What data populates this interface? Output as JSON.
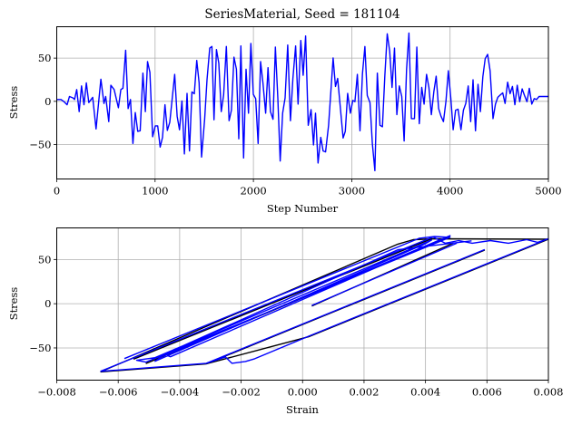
{
  "colors": {
    "primary": "#0000ff",
    "reference": "#000000",
    "grid": "#b0b0b0"
  },
  "chart_data": [
    {
      "type": "line",
      "title": "SeriesMaterial, Seed = 181104",
      "xlabel": "Step Number",
      "ylabel": "Stress",
      "xlim": [
        0,
        5000
      ],
      "ylim": [
        -89.8,
        86.3
      ],
      "xticks": [
        0,
        1000,
        2000,
        3000,
        4000,
        5000
      ],
      "xtick_labels": [
        "0",
        "1000",
        "2000",
        "3000",
        "4000",
        "5000"
      ],
      "yticks": [
        -50,
        0,
        50
      ],
      "ytick_labels": [
        "−50",
        "0",
        "50"
      ],
      "grid": true,
      "series": [
        {
          "name": "reference",
          "color": "#000000",
          "points": []
        },
        {
          "name": "stress",
          "color": "#0000ff",
          "points": [
            [
              0,
              2
            ],
            [
              12,
              2.1
            ],
            [
              43,
              2.1
            ],
            [
              74,
              -0.4
            ],
            [
              105,
              -3.9
            ],
            [
              129,
              5.6
            ],
            [
              166,
              3.9
            ],
            [
              181,
              2.1
            ],
            [
              203,
              13.7
            ],
            [
              228,
              -11.9
            ],
            [
              252,
              17.9
            ],
            [
              277,
              -3.9
            ],
            [
              301,
              21.4
            ],
            [
              326,
              -1.4
            ],
            [
              366,
              4.6
            ],
            [
              400,
              -31.9
            ],
            [
              449,
              25.6
            ],
            [
              480,
              -2.5
            ],
            [
              498,
              5.6
            ],
            [
              529,
              -23.5
            ],
            [
              550,
              18.6
            ],
            [
              584,
              13.7
            ],
            [
              627,
              -7.4
            ],
            [
              652,
              13.7
            ],
            [
              673,
              15.1
            ],
            [
              701,
              59.2
            ],
            [
              726,
              -8.4
            ],
            [
              750,
              2.1
            ],
            [
              775,
              -48.7
            ],
            [
              799,
              -13.0
            ],
            [
              824,
              -34.7
            ],
            [
              849,
              -34.0
            ],
            [
              876,
              32.6
            ],
            [
              901,
              -11.9
            ],
            [
              923,
              45.9
            ],
            [
              947,
              33.6
            ],
            [
              975,
              -41.0
            ],
            [
              1002,
              -28.4
            ],
            [
              1027,
              -28.4
            ],
            [
              1052,
              -52.9
            ],
            [
              1076,
              -41.7
            ],
            [
              1101,
              -3.9
            ],
            [
              1125,
              -33.6
            ],
            [
              1150,
              -24.2
            ],
            [
              1199,
              31.2
            ],
            [
              1224,
              -17.2
            ],
            [
              1248,
              -32.9
            ],
            [
              1273,
              0.4
            ],
            [
              1298,
              -60.9
            ],
            [
              1325,
              9.1
            ],
            [
              1350,
              -57.4
            ],
            [
              1375,
              10.9
            ],
            [
              1399,
              8.8
            ],
            [
              1424,
              47.3
            ],
            [
              1448,
              21.4
            ],
            [
              1473,
              -64.4
            ],
            [
              1504,
              -20.7
            ],
            [
              1528,
              24.9
            ],
            [
              1556,
              61.6
            ],
            [
              1578,
              63.4
            ],
            [
              1599,
              -21.4
            ],
            [
              1624,
              59.9
            ],
            [
              1648,
              44.1
            ],
            [
              1673,
              -11.9
            ],
            [
              1697,
              7.4
            ],
            [
              1725,
              63.4
            ],
            [
              1753,
              -22.4
            ],
            [
              1777,
              -10.2
            ],
            [
              1802,
              51.1
            ],
            [
              1827,
              37.1
            ],
            [
              1851,
              -43.4
            ],
            [
              1873,
              64.1
            ],
            [
              1900,
              -65.5
            ],
            [
              1925,
              37.1
            ],
            [
              1950,
              -13.7
            ],
            [
              1974,
              66.9
            ],
            [
              1999,
              8.1
            ],
            [
              2023,
              3.2
            ],
            [
              2048,
              -48.7
            ],
            [
              2073,
              45.9
            ],
            [
              2097,
              21.4
            ],
            [
              2125,
              -13.7
            ],
            [
              2149,
              38.9
            ],
            [
              2174,
              -11.9
            ],
            [
              2199,
              -20.7
            ],
            [
              2223,
              62.7
            ],
            [
              2248,
              3.9
            ],
            [
              2272,
              -69.0
            ],
            [
              2297,
              -13.7
            ],
            [
              2322,
              3.9
            ],
            [
              2349,
              65.1
            ],
            [
              2377,
              -22.4
            ],
            [
              2402,
              26.6
            ],
            [
              2429,
              64.1
            ],
            [
              2454,
              -3.2
            ],
            [
              2482,
              70.4
            ],
            [
              2506,
              30.1
            ],
            [
              2531,
              75.6
            ],
            [
              2558,
              -27.7
            ],
            [
              2586,
              -9.5
            ],
            [
              2611,
              -50.4
            ],
            [
              2632,
              -13.7
            ],
            [
              2657,
              -71.4
            ],
            [
              2685,
              -41.7
            ],
            [
              2709,
              -57.4
            ],
            [
              2734,
              -58.5
            ],
            [
              2765,
              -27.7
            ],
            [
              2811,
              50.1
            ],
            [
              2835,
              17.2
            ],
            [
              2857,
              26.6
            ],
            [
              2881,
              -3.2
            ],
            [
              2912,
              -42.4
            ],
            [
              2934,
              -34.7
            ],
            [
              2958,
              9.1
            ],
            [
              2986,
              -13.7
            ],
            [
              3011,
              1.1
            ],
            [
              3032,
              -0.4
            ],
            [
              3057,
              31.2
            ],
            [
              3084,
              -34.0
            ],
            [
              3109,
              31.9
            ],
            [
              3134,
              63.4
            ],
            [
              3158,
              6.7
            ],
            [
              3186,
              -1.4
            ],
            [
              3210,
              -48.7
            ],
            [
              3235,
              -80.2
            ],
            [
              3260,
              32.6
            ],
            [
              3287,
              -27.7
            ],
            [
              3312,
              -29.4
            ],
            [
              3336,
              28.4
            ],
            [
              3361,
              78.1
            ],
            [
              3386,
              58.1
            ],
            [
              3410,
              16.1
            ],
            [
              3435,
              61.6
            ],
            [
              3459,
              -15.4
            ],
            [
              3484,
              17.9
            ],
            [
              3509,
              5.6
            ],
            [
              3533,
              -45.9
            ],
            [
              3558,
              37.1
            ],
            [
              3582,
              79.1
            ],
            [
              3607,
              -20.0
            ],
            [
              3638,
              -20.0
            ],
            [
              3662,
              62.7
            ],
            [
              3687,
              -25.9
            ],
            [
              3712,
              16.1
            ],
            [
              3736,
              -3.2
            ],
            [
              3761,
              31.2
            ],
            [
              3785,
              16.1
            ],
            [
              3810,
              -15.4
            ],
            [
              3835,
              10.9
            ],
            [
              3859,
              29.1
            ],
            [
              3884,
              -8.4
            ],
            [
              3908,
              -17.2
            ],
            [
              3933,
              -23.5
            ],
            [
              3958,
              0.4
            ],
            [
              3982,
              35.4
            ],
            [
              4007,
              3.9
            ],
            [
              4031,
              -32.9
            ],
            [
              4056,
              -10.2
            ],
            [
              4081,
              -9.1
            ],
            [
              4111,
              -32.9
            ],
            [
              4136,
              -10.2
            ],
            [
              4160,
              -2.5
            ],
            [
              4185,
              17.9
            ],
            [
              4210,
              -23.5
            ],
            [
              4234,
              24.9
            ],
            [
              4259,
              -34.0
            ],
            [
              4284,
              19.6
            ],
            [
              4308,
              -11.9
            ],
            [
              4333,
              28.4
            ],
            [
              4357,
              49.4
            ],
            [
              4382,
              54.3
            ],
            [
              4407,
              35.4
            ],
            [
              4437,
              -20.0
            ],
            [
              4462,
              -3.2
            ],
            [
              4486,
              4.6
            ],
            [
              4511,
              7.4
            ],
            [
              4536,
              9.8
            ],
            [
              4560,
              -2.5
            ],
            [
              4585,
              22.1
            ],
            [
              4610,
              8.8
            ],
            [
              4634,
              17.2
            ],
            [
              4659,
              -3.9
            ],
            [
              4683,
              18.6
            ],
            [
              4708,
              -0.4
            ],
            [
              4733,
              14.4
            ],
            [
              4757,
              6.7
            ],
            [
              4782,
              -0.4
            ],
            [
              4806,
              15.1
            ],
            [
              4831,
              -3.2
            ],
            [
              4856,
              3.2
            ],
            [
              4880,
              2.1
            ],
            [
              4905,
              5.6
            ],
            [
              4948,
              5.6
            ],
            [
              5000,
              5.6
            ]
          ]
        }
      ]
    },
    {
      "type": "line",
      "title": "",
      "xlabel": "Strain",
      "ylabel": "Stress",
      "xlim": [
        -0.008,
        0.008
      ],
      "ylim": [
        -86.4,
        85.7
      ],
      "xticks": [
        -0.008,
        -0.006,
        -0.004,
        -0.002,
        0,
        0.002,
        0.004,
        0.006,
        0.008
      ],
      "xtick_labels": [
        "−0.008",
        "−0.006",
        "−0.004",
        "−0.002",
        "0.000",
        "0.002",
        "0.004",
        "0.006",
        "0.008"
      ],
      "yticks": [
        -50,
        0,
        50
      ],
      "ytick_labels": [
        "−50",
        "0",
        "50"
      ],
      "grid": true,
      "series": [
        {
          "name": "reference",
          "color": "#000000",
          "polylines": [
            [
              [
                -0.00658,
                -76.5
              ],
              [
                0.0031,
                68
              ],
              [
                0.0036,
                73
              ],
              [
                0.0043,
                74
              ],
              [
                0.008,
                73.5
              ],
              [
                0.0002,
                -36.7
              ],
              [
                -0.00313,
                -67.3
              ],
              [
                -0.00658,
                -76.5
              ]
            ],
            [
              [
                -0.00313,
                -67.3
              ],
              [
                0.00593,
                61.2
              ]
            ],
            [
              [
                0.0003,
                -2
              ],
              [
                0.0049,
                69
              ]
            ],
            [
              [
                -0.0051,
                -67
              ],
              [
                0.0048,
                77
              ]
            ],
            [
              [
                -0.0055,
                -62
              ],
              [
                0.0042,
                74
              ]
            ]
          ]
        },
        {
          "name": "hysteresis",
          "color": "#0000ff",
          "polylines": [
            [
              [
                -0.00658,
                -76.5
              ],
              [
                0.00425,
                75.5
              ],
              [
                0.00464,
                68.4
              ],
              [
                0.00508,
                71.4
              ],
              [
                0.00552,
                68.4
              ],
              [
                0.00611,
                71.4
              ],
              [
                0.0067,
                68.4
              ],
              [
                0.00729,
                72.4
              ],
              [
                0.00765,
                69.4
              ],
              [
                0.008,
                73.5
              ],
              [
                0.0002,
                -36.7
              ],
              [
                -0.00156,
                -62.2
              ],
              [
                -0.00186,
                -65.3
              ],
              [
                -0.0023,
                -67.3
              ],
              [
                -0.00251,
                -60.2
              ],
              [
                -0.00313,
                -67.3
              ],
              [
                -0.00658,
                -76.5
              ]
            ],
            [
              [
                -0.00313,
                -67.3
              ],
              [
                0.00593,
                61.2
              ]
            ],
            [
              [
                0.0003,
                -2
              ],
              [
                0.00502,
                68.4
              ]
            ],
            [
              [
                -0.0058,
                -62
              ],
              [
                0.0038,
                74
              ],
              [
                0.0043,
                76
              ],
              [
                0.0048,
                75
              ],
              [
                -0.0051,
                -66
              ],
              [
                -0.0054,
                -64
              ],
              [
                -0.0048,
                -61
              ],
              [
                0.0042,
                72
              ],
              [
                0.004,
                68
              ],
              [
                -0.0048,
                -65
              ],
              [
                -0.0046,
                -60
              ],
              [
                0.0048,
                77
              ],
              [
                -0.0043,
                -60
              ],
              [
                -0.0045,
                -57
              ],
              [
                0.0031,
                61
              ],
              [
                0.0055,
                71
              ]
            ]
          ]
        }
      ]
    }
  ]
}
